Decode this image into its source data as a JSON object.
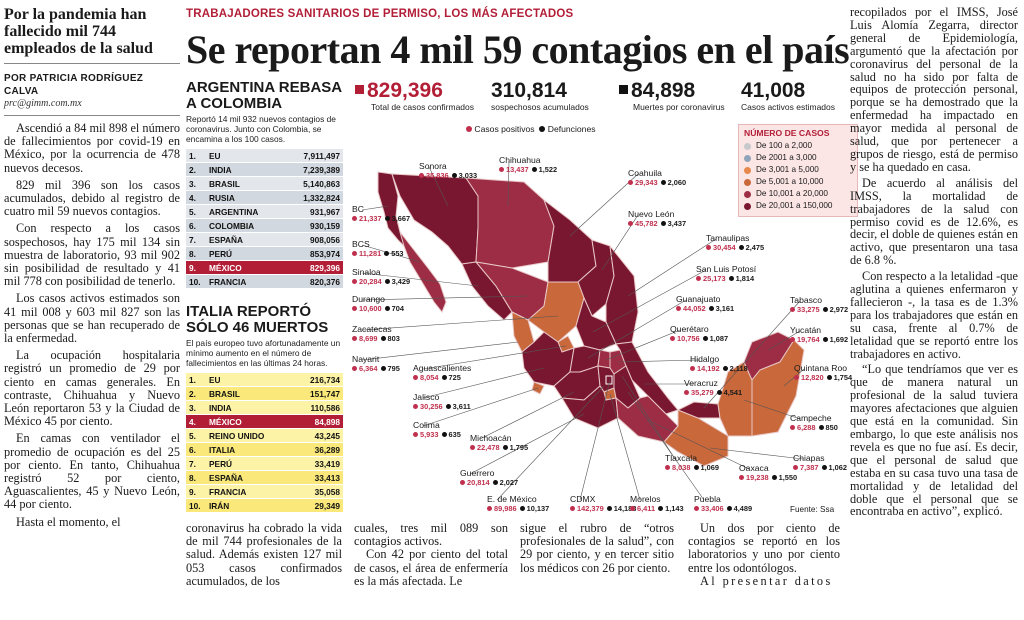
{
  "left": {
    "kicker": "Por la pandemia han fallecido mil 744 empleados de la salud",
    "byline": "POR PATRICIA RODRÍGUEZ CALVA",
    "email": "prc@gimm.com.mx",
    "paragraphs": [
      "Ascendió a 84 mil 898 el número de fallecimientos por covid-19 en México, por la ocurrencia de 478 nuevos decesos.",
      "829 mil 396 son los casos acumulados, debido al registro de cuatro mil 59 nuevos contagios.",
      "Con respecto a los casos sospechosos, hay 175 mil 134 sin muestra de laboratorio, 93 mil 902 sin posibilidad de resultado y 41 mil 778 con posibilidad de tenerlo.",
      "Los casos activos estimados son 41 mil 008 y 603 mil 827 son las personas que se han recuperado de la enfermedad.",
      "La ocupación hospitalaria registró un promedio de 29 por ciento en camas generales. En contraste, Chihuahua y Nuevo León reportaron 53 y la Ciudad de México 45 por ciento.",
      "En camas con ventilador el promedio de ocupación es del 25 por ciento. En tanto, Chihuahua registró 52 por ciento, Aguascalientes, 45 y Nuevo León, 44 por ciento.",
      "Hasta el momento, el"
    ]
  },
  "header": {
    "kicker": "TRABAJADORES SANITARIOS DE PERMISO, LOS MÁS AFECTADOS",
    "headline": "Se reportan 4 mil 59 contagios en el país"
  },
  "argentina": {
    "title": "ARGENTINA REBASA A COLOMBIA",
    "subtitle": "Reportó 14 mil 932 nuevos contagios de coronavirus. Junto con Colombia, se encamina a los 100 casos.",
    "rows": [
      {
        "n": "1.",
        "c": "EU",
        "v": "7,911,497"
      },
      {
        "n": "2.",
        "c": "INDIA",
        "v": "7,239,389"
      },
      {
        "n": "3.",
        "c": "BRASIL",
        "v": "5,140,863"
      },
      {
        "n": "4.",
        "c": "RUSIA",
        "v": "1,332,824"
      },
      {
        "n": "5.",
        "c": "ARGENTINA",
        "v": "931,967"
      },
      {
        "n": "6.",
        "c": "COLOMBIA",
        "v": "930,159"
      },
      {
        "n": "7.",
        "c": "ESPAÑA",
        "v": "908,056"
      },
      {
        "n": "8.",
        "c": "PERÚ",
        "v": "853,974"
      },
      {
        "n": "9.",
        "c": "MÉXICO",
        "v": "829,396"
      },
      {
        "n": "10.",
        "c": "FRANCIA",
        "v": "820,376"
      }
    ]
  },
  "italia": {
    "title": "ITALIA REPORTÓ SÓLO 46 MUERTOS",
    "subtitle": "El país europeo tuvo afortunadamente un mínimo aumento en el número de fallecimientos en las últimas 24 horas.",
    "rows": [
      {
        "n": "1.",
        "c": "EU",
        "v": "216,734"
      },
      {
        "n": "2.",
        "c": "BRASIL",
        "v": "151,747"
      },
      {
        "n": "3.",
        "c": "INDIA",
        "v": "110,586"
      },
      {
        "n": "4.",
        "c": "MÉXICO",
        "v": "84,898"
      },
      {
        "n": "5.",
        "c": "REINO UNIDO",
        "v": "43,245"
      },
      {
        "n": "6.",
        "c": "ITALIA",
        "v": "36,289"
      },
      {
        "n": "7.",
        "c": "PERÚ",
        "v": "33,419"
      },
      {
        "n": "8.",
        "c": "ESPAÑA",
        "v": "33,413"
      },
      {
        "n": "9.",
        "c": "FRANCIA",
        "v": "35,058"
      },
      {
        "n": "10.",
        "c": "IRÁN",
        "v": "29,349"
      }
    ]
  },
  "stats": {
    "confirmed": {
      "value": "829,396",
      "label": "Total de casos confirmados"
    },
    "suspected": {
      "value": "310,814",
      "label": "sospechosos acumulados"
    },
    "deaths": {
      "value": "84,898",
      "label": "Muertes por coronavirus"
    },
    "active": {
      "value": "41,008",
      "label": "Casos activos estimados"
    }
  },
  "map_legend": {
    "positive": "Casos positivos",
    "deaths": "Defunciones",
    "title": "NÚMERO DE CASOS",
    "ranges": [
      {
        "label": "De 100 a 2,000",
        "color": "#c7c9cc"
      },
      {
        "label": "De 2001 a 3,000",
        "color": "#8fa4b8"
      },
      {
        "label": "De 3,001 a 5,000",
        "color": "#e7894c"
      },
      {
        "label": "De 5,001 a 10,000",
        "color": "#c8683b"
      },
      {
        "label": "De 10,001 a 20,000",
        "color": "#9c2d45"
      },
      {
        "label": "De 20,001 a 150,000",
        "color": "#7a1730"
      }
    ],
    "source": "Fuente: Ssa",
    "positive_color": "#c0304e",
    "death_color": "#1a1a1a"
  },
  "states": [
    {
      "name": "Sonora",
      "pos": "35,836",
      "def": "3,033"
    },
    {
      "name": "Chihuahua",
      "pos": "13,437",
      "def": "1,522"
    },
    {
      "name": "Coahuila",
      "pos": "29,343",
      "def": "2,060"
    },
    {
      "name": "BC",
      "pos": "21,337",
      "def": "3,667"
    },
    {
      "name": "Nuevo León",
      "pos": "45,782",
      "def": "3,437"
    },
    {
      "name": "BCS",
      "pos": "11,281",
      "def": "553"
    },
    {
      "name": "Tamaulipas",
      "pos": "30,454",
      "def": "2,475"
    },
    {
      "name": "San Luis Potosí",
      "pos": "25,173",
      "def": "1,814"
    },
    {
      "name": "Sinaloa",
      "pos": "20,284",
      "def": "3,429"
    },
    {
      "name": "Durango",
      "pos": "10,600",
      "def": "704"
    },
    {
      "name": "Guanajuato",
      "pos": "44,052",
      "def": "3,161"
    },
    {
      "name": "Tabasco",
      "pos": "33,275",
      "def": "2,972"
    },
    {
      "name": "Zacatecas",
      "pos": "8,699",
      "def": "803"
    },
    {
      "name": "Querétaro",
      "pos": "10,756",
      "def": "1,087"
    },
    {
      "name": "Yucatán",
      "pos": "19,764",
      "def": "1,692"
    },
    {
      "name": "Nayarit",
      "pos": "6,364",
      "def": "795"
    },
    {
      "name": "Hidalgo",
      "pos": "14,192",
      "def": "2,118"
    },
    {
      "name": "Aguascalientes",
      "pos": "8,054",
      "def": "725"
    },
    {
      "name": "Quintana Roo",
      "pos": "12,820",
      "def": "1,754"
    },
    {
      "name": "Veracruz",
      "pos": "35,279",
      "def": "4,541"
    },
    {
      "name": "Jalisco",
      "pos": "30,256",
      "def": "3,611"
    },
    {
      "name": "Campeche",
      "pos": "6,288",
      "def": "850"
    },
    {
      "name": "Colima",
      "pos": "5,933",
      "def": "635"
    },
    {
      "name": "Michoacán",
      "pos": "22,478",
      "def": "1,795"
    },
    {
      "name": "Chiapas",
      "pos": "7,387",
      "def": "1,062"
    },
    {
      "name": "Tlaxcala",
      "pos": "8,038",
      "def": "1,069"
    },
    {
      "name": "Oaxaca",
      "pos": "19,238",
      "def": "1,550"
    },
    {
      "name": "Guerrero",
      "pos": "20,814",
      "def": "2,027"
    },
    {
      "name": "E. de México",
      "pos": "89,986",
      "def": "10,137"
    },
    {
      "name": "CDMX",
      "pos": "142,379",
      "def": "14,188"
    },
    {
      "name": "Morelos",
      "pos": "6,411",
      "def": "1,143"
    },
    {
      "name": "Puebla",
      "pos": "33,406",
      "def": "4,489"
    }
  ],
  "bottom": {
    "c1": "coronavirus ha cobrado la vida de mil 744 profesionales de la salud. Además existen 127 mil 053 casos confirmados acumulados, de los",
    "c2": "cuales, tres mil 089 son contagios activos.",
    "c2b": "Con 42 por ciento del total de casos, el área de enfermería es la más afectada. Le",
    "c3": "sigue el rubro de “otros profesionales de la salud”, con 29 por ciento, y en tercer sitio los médicos con 26 por ciento.",
    "c4": "Un dos por ciento de contagios se reportó en los laboratorios y uno por ciento entre los odontólogos.",
    "c4b": "Al presentar datos"
  },
  "right": {
    "paragraphs": [
      "recopilados por el IMSS, José Luis Alomía Zegarra, director general de Epidemiología, argumentó que la afectación por coronavirus del personal de la salud no ha sido por falta de equipos de protección personal, porque se ha demostrado que la enfermedad ha impactado en mayor medida al personal de salud, que por pertenecer a grupos de riesgo, está de permiso y se ha quedado en casa.",
      "De acuerdo al análisis del IMSS, la mortalidad de trabajadores de la salud con permiso covid es de 12.6%, es decir, el doble de quienes están en activo, que presentaron una tasa de 6.8 %.",
      "Con respecto a la letalidad -que aglutina a quienes enfermaron y fallecieron -, la tasa es de 1.3% para los trabajadores que están en su casa, frente al 0.7% de letalidad que se reportó entre los trabajadores en activo.",
      "“Lo que tendríamos que ver es que de manera natural un profesional de la salud tuviera mayores afectaciones que alguien que está en la comunidad. Sin embargo, lo que este análisis nos revela es que no fue así. Es decir, que el personal de salud que estaba en su casa tuvo una tasa de mortalidad y de letalidad del doble que el personal que se encontraba en activo”, explicó."
    ]
  }
}
